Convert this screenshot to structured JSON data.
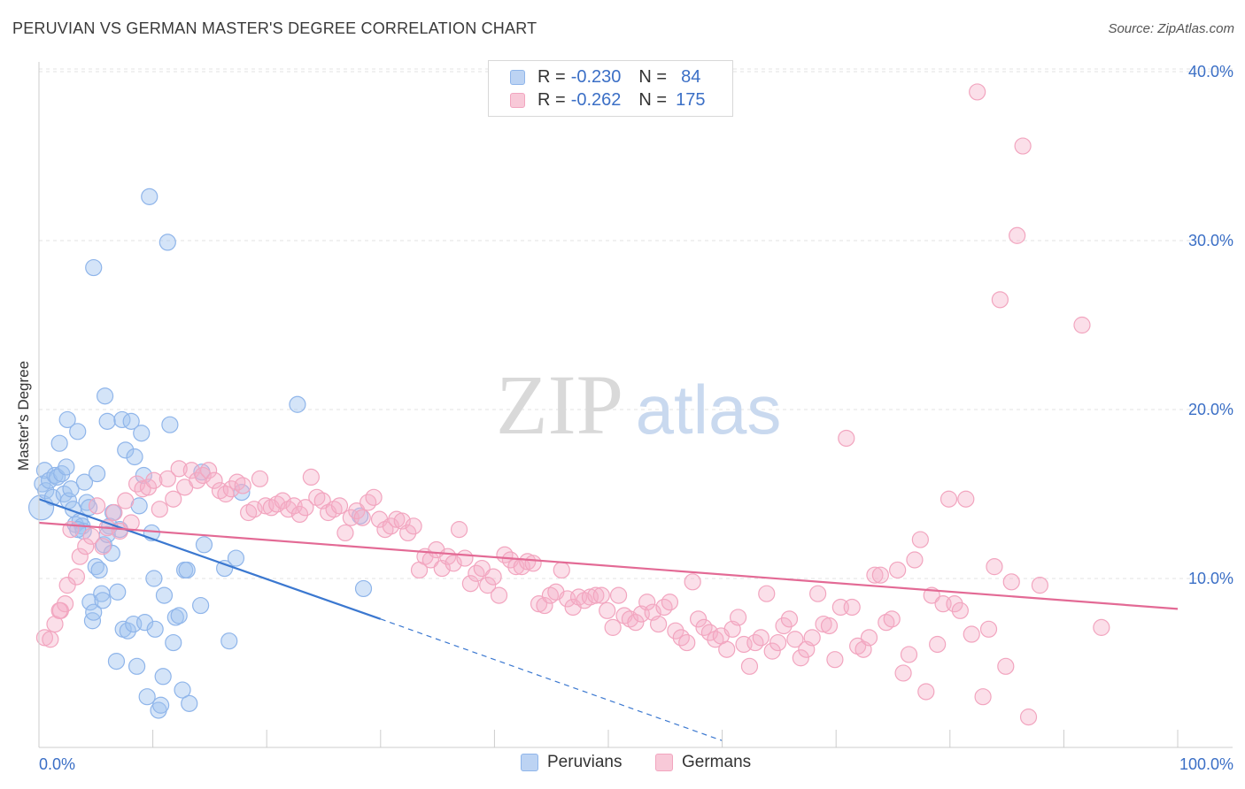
{
  "title": "PERUVIAN VS GERMAN MASTER'S DEGREE CORRELATION CHART",
  "source": "Source: ZipAtlas.com",
  "watermark": {
    "zip": "ZIP",
    "atlas": "atlas"
  },
  "legend": {
    "r_label": "R =",
    "n_label": "N =",
    "rows": [
      {
        "name": "Peruvians",
        "r": "-0.230",
        "n": "84",
        "color": "#8fb5ea",
        "fill": "#bcd3f3"
      },
      {
        "name": "Germans",
        "r": "-0.262",
        "n": "175",
        "color": "#f2a5bf",
        "fill": "#f8c9d8"
      }
    ]
  },
  "chart_data": {
    "type": "scatter",
    "ylabel": "Master's Degree",
    "xlim": [
      0,
      100
    ],
    "ylim": [
      0,
      42
    ],
    "x_ticks": [
      "0.0%",
      "100.0%"
    ],
    "y_ticks": [
      {
        "value": 10,
        "label": "10.0%"
      },
      {
        "value": 20,
        "label": "20.0%"
      },
      {
        "value": 30,
        "label": "30.0%"
      },
      {
        "value": 40,
        "label": "40.0%"
      }
    ],
    "grid": true,
    "legend_placement": "top-center",
    "series": [
      {
        "name": "Peruvians",
        "color": "#8fb5ea",
        "line_color": "#3b78d0",
        "trend": {
          "x_start": 0,
          "y_start": 14.7,
          "x_solid_end": 30,
          "y_solid_end": 7.6,
          "x_dash_end": 60,
          "y_dash_end": 0.4
        },
        "points": [
          [
            0.2,
            14.2
          ],
          [
            0.3,
            15.6
          ],
          [
            0.5,
            16.4
          ],
          [
            0.6,
            15.2
          ],
          [
            0.9,
            15.8
          ],
          [
            1.2,
            14.8
          ],
          [
            1.4,
            16.1
          ],
          [
            1.6,
            16.0
          ],
          [
            1.8,
            18.0
          ],
          [
            2.0,
            16.2
          ],
          [
            2.2,
            15.0
          ],
          [
            2.4,
            16.6
          ],
          [
            2.5,
            19.4
          ],
          [
            2.6,
            14.6
          ],
          [
            2.8,
            15.3
          ],
          [
            3.0,
            14.1
          ],
          [
            3.2,
            13.2
          ],
          [
            3.4,
            18.7
          ],
          [
            3.6,
            13.4
          ],
          [
            3.8,
            13.1
          ],
          [
            3.9,
            12.8
          ],
          [
            4.0,
            15.7
          ],
          [
            4.2,
            14.5
          ],
          [
            4.4,
            14.2
          ],
          [
            4.5,
            8.6
          ],
          [
            4.7,
            7.5
          ],
          [
            4.8,
            8.0
          ],
          [
            5.0,
            10.7
          ],
          [
            5.1,
            16.2
          ],
          [
            5.3,
            10.5
          ],
          [
            5.5,
            9.1
          ],
          [
            5.6,
            8.7
          ],
          [
            5.7,
            12.0
          ],
          [
            5.8,
            20.8
          ],
          [
            6.0,
            19.3
          ],
          [
            6.2,
            13.1
          ],
          [
            6.4,
            11.5
          ],
          [
            6.5,
            13.9
          ],
          [
            6.8,
            5.1
          ],
          [
            6.9,
            9.2
          ],
          [
            7.1,
            12.9
          ],
          [
            7.3,
            19.4
          ],
          [
            7.4,
            7.0
          ],
          [
            7.6,
            17.6
          ],
          [
            7.8,
            6.9
          ],
          [
            8.1,
            19.3
          ],
          [
            8.3,
            7.3
          ],
          [
            8.4,
            17.2
          ],
          [
            8.6,
            4.8
          ],
          [
            8.8,
            14.3
          ],
          [
            9.0,
            18.6
          ],
          [
            9.2,
            16.1
          ],
          [
            9.3,
            7.4
          ],
          [
            9.5,
            3.0
          ],
          [
            9.7,
            32.6
          ],
          [
            9.9,
            12.7
          ],
          [
            10.1,
            10.0
          ],
          [
            10.2,
            7.0
          ],
          [
            10.5,
            2.2
          ],
          [
            10.7,
            2.5
          ],
          [
            10.9,
            4.2
          ],
          [
            11.0,
            9.0
          ],
          [
            11.3,
            29.9
          ],
          [
            11.5,
            19.1
          ],
          [
            11.8,
            6.2
          ],
          [
            12.0,
            7.7
          ],
          [
            12.3,
            7.8
          ],
          [
            12.6,
            3.4
          ],
          [
            12.8,
            10.5
          ],
          [
            13.0,
            10.5
          ],
          [
            13.2,
            2.6
          ],
          [
            14.2,
            8.4
          ],
          [
            14.5,
            12.0
          ],
          [
            16.3,
            10.6
          ],
          [
            16.7,
            6.3
          ],
          [
            17.3,
            11.2
          ],
          [
            17.8,
            15.1
          ],
          [
            14.3,
            16.3
          ],
          [
            22.7,
            20.3
          ],
          [
            28.2,
            13.7
          ],
          [
            28.5,
            9.4
          ],
          [
            4.8,
            28.4
          ],
          [
            3.4,
            12.9
          ],
          [
            6.0,
            12.6
          ]
        ]
      },
      {
        "name": "Germans",
        "color": "#f2a5bf",
        "line_color": "#e36a95",
        "trend": {
          "x_start": 0,
          "y_start": 13.3,
          "x_end": 100,
          "y_end": 8.2
        },
        "points": [
          [
            0.5,
            6.5
          ],
          [
            1.0,
            6.4
          ],
          [
            1.4,
            7.3
          ],
          [
            1.9,
            8.1
          ],
          [
            2.3,
            8.5
          ],
          [
            2.8,
            12.9
          ],
          [
            3.3,
            10.1
          ],
          [
            3.6,
            11.3
          ],
          [
            4.1,
            11.9
          ],
          [
            4.6,
            12.5
          ],
          [
            5.1,
            14.3
          ],
          [
            5.6,
            11.9
          ],
          [
            6.0,
            13.0
          ],
          [
            6.6,
            13.9
          ],
          [
            7.1,
            12.8
          ],
          [
            7.6,
            14.6
          ],
          [
            8.1,
            13.3
          ],
          [
            8.6,
            15.6
          ],
          [
            9.1,
            15.3
          ],
          [
            9.6,
            15.4
          ],
          [
            10.1,
            15.8
          ],
          [
            10.6,
            14.1
          ],
          [
            11.3,
            15.9
          ],
          [
            11.8,
            14.7
          ],
          [
            12.3,
            16.5
          ],
          [
            12.8,
            15.4
          ],
          [
            13.4,
            16.4
          ],
          [
            13.9,
            15.8
          ],
          [
            14.4,
            16.1
          ],
          [
            14.9,
            16.4
          ],
          [
            15.4,
            15.8
          ],
          [
            15.9,
            15.2
          ],
          [
            16.4,
            15.0
          ],
          [
            16.9,
            15.3
          ],
          [
            17.4,
            15.7
          ],
          [
            17.9,
            15.5
          ],
          [
            18.4,
            13.9
          ],
          [
            18.9,
            14.1
          ],
          [
            19.4,
            15.9
          ],
          [
            19.9,
            14.3
          ],
          [
            20.4,
            14.2
          ],
          [
            20.9,
            14.4
          ],
          [
            21.4,
            14.6
          ],
          [
            21.9,
            14.1
          ],
          [
            22.4,
            14.3
          ],
          [
            22.9,
            13.8
          ],
          [
            23.4,
            14.2
          ],
          [
            23.9,
            16.0
          ],
          [
            24.4,
            14.8
          ],
          [
            24.9,
            14.6
          ],
          [
            25.4,
            13.9
          ],
          [
            25.9,
            14.1
          ],
          [
            26.4,
            14.3
          ],
          [
            26.9,
            12.7
          ],
          [
            27.4,
            13.6
          ],
          [
            27.9,
            14.0
          ],
          [
            28.4,
            13.6
          ],
          [
            28.9,
            14.5
          ],
          [
            29.4,
            14.8
          ],
          [
            29.9,
            13.5
          ],
          [
            30.4,
            12.9
          ],
          [
            30.9,
            13.1
          ],
          [
            31.4,
            13.5
          ],
          [
            31.9,
            13.4
          ],
          [
            32.4,
            12.7
          ],
          [
            32.9,
            13.1
          ],
          [
            33.4,
            10.5
          ],
          [
            33.9,
            11.3
          ],
          [
            34.4,
            11.1
          ],
          [
            34.9,
            11.7
          ],
          [
            35.4,
            10.6
          ],
          [
            35.9,
            11.3
          ],
          [
            36.4,
            10.9
          ],
          [
            36.9,
            12.9
          ],
          [
            37.4,
            11.2
          ],
          [
            37.9,
            9.7
          ],
          [
            38.4,
            10.3
          ],
          [
            38.9,
            10.6
          ],
          [
            39.4,
            9.6
          ],
          [
            39.9,
            10.1
          ],
          [
            40.4,
            9.0
          ],
          [
            40.9,
            11.4
          ],
          [
            41.4,
            11.1
          ],
          [
            41.9,
            10.7
          ],
          [
            42.4,
            10.7
          ],
          [
            42.9,
            11.0
          ],
          [
            43.4,
            10.9
          ],
          [
            43.9,
            8.5
          ],
          [
            44.4,
            8.4
          ],
          [
            44.9,
            9.0
          ],
          [
            45.4,
            9.2
          ],
          [
            45.9,
            10.5
          ],
          [
            46.4,
            8.8
          ],
          [
            46.9,
            8.3
          ],
          [
            47.4,
            8.9
          ],
          [
            47.9,
            8.7
          ],
          [
            48.4,
            8.9
          ],
          [
            48.9,
            9.0
          ],
          [
            49.4,
            9.0
          ],
          [
            49.9,
            8.1
          ],
          [
            50.4,
            7.1
          ],
          [
            50.9,
            9.0
          ],
          [
            51.4,
            7.8
          ],
          [
            51.9,
            7.6
          ],
          [
            52.4,
            7.4
          ],
          [
            52.9,
            7.9
          ],
          [
            53.4,
            8.6
          ],
          [
            53.9,
            8.0
          ],
          [
            54.4,
            7.3
          ],
          [
            54.9,
            8.3
          ],
          [
            55.4,
            8.6
          ],
          [
            55.9,
            6.9
          ],
          [
            56.4,
            6.5
          ],
          [
            56.9,
            6.2
          ],
          [
            57.4,
            9.8
          ],
          [
            57.9,
            7.6
          ],
          [
            58.4,
            7.1
          ],
          [
            58.9,
            6.8
          ],
          [
            59.4,
            6.4
          ],
          [
            59.9,
            6.6
          ],
          [
            60.4,
            5.8
          ],
          [
            60.9,
            7.0
          ],
          [
            61.4,
            7.7
          ],
          [
            61.9,
            6.1
          ],
          [
            62.4,
            4.8
          ],
          [
            62.9,
            6.2
          ],
          [
            63.4,
            6.5
          ],
          [
            63.9,
            9.1
          ],
          [
            64.4,
            5.7
          ],
          [
            64.9,
            6.2
          ],
          [
            65.4,
            7.2
          ],
          [
            65.9,
            7.6
          ],
          [
            66.4,
            6.4
          ],
          [
            66.9,
            5.3
          ],
          [
            67.4,
            5.8
          ],
          [
            67.9,
            6.5
          ],
          [
            68.4,
            9.1
          ],
          [
            68.9,
            7.3
          ],
          [
            69.4,
            7.2
          ],
          [
            69.9,
            5.2
          ],
          [
            70.4,
            8.3
          ],
          [
            70.9,
            18.3
          ],
          [
            71.4,
            8.3
          ],
          [
            71.9,
            6.0
          ],
          [
            72.4,
            5.8
          ],
          [
            72.9,
            6.5
          ],
          [
            73.4,
            10.2
          ],
          [
            73.9,
            10.2
          ],
          [
            74.4,
            7.4
          ],
          [
            74.9,
            7.6
          ],
          [
            75.4,
            10.5
          ],
          [
            75.9,
            4.4
          ],
          [
            76.4,
            5.5
          ],
          [
            76.9,
            11.1
          ],
          [
            77.4,
            12.3
          ],
          [
            77.9,
            3.3
          ],
          [
            78.4,
            9.0
          ],
          [
            78.9,
            6.1
          ],
          [
            79.4,
            8.5
          ],
          [
            79.9,
            14.7
          ],
          [
            80.4,
            8.5
          ],
          [
            80.9,
            8.1
          ],
          [
            81.4,
            14.7
          ],
          [
            81.9,
            6.7
          ],
          [
            82.4,
            38.8
          ],
          [
            82.9,
            3.0
          ],
          [
            83.4,
            7.0
          ],
          [
            83.9,
            10.7
          ],
          [
            84.4,
            26.5
          ],
          [
            84.9,
            4.8
          ],
          [
            85.4,
            9.8
          ],
          [
            85.9,
            30.3
          ],
          [
            86.4,
            35.6
          ],
          [
            86.9,
            1.8
          ],
          [
            87.9,
            9.6
          ],
          [
            91.6,
            25.0
          ],
          [
            93.3,
            7.1
          ],
          [
            1.8,
            8.1
          ],
          [
            2.5,
            9.6
          ]
        ]
      }
    ]
  },
  "bottom_legend": [
    "Peruvians",
    "Germans"
  ]
}
